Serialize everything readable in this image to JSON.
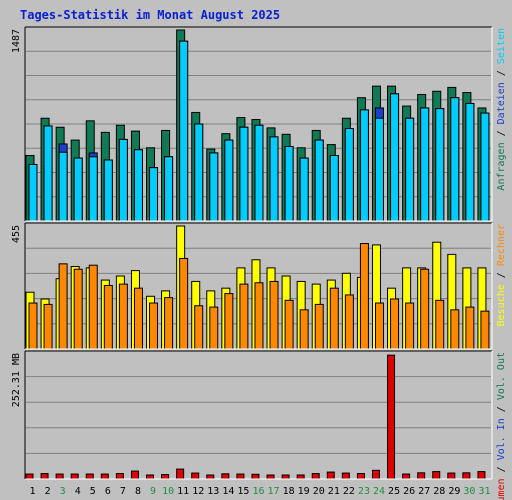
{
  "title": "Tages-Statistik im Monat August 2025",
  "colors": {
    "title": "#0b20d0",
    "background": "#c0c0c0",
    "plot_bg": "#c0c0c0",
    "border_dark": "#000000",
    "grid": "#808080",
    "requests": "#117a55",
    "pages": "#00ccff",
    "files": "#1a3fcc",
    "visits": "#ffff00",
    "visitors": "#ff8800",
    "kbytes": "#dd0000",
    "weekend": "#1f8f3f",
    "weekday": "#000000"
  },
  "chart_data": [
    {
      "type": "bar",
      "ylabel": "1487",
      "ylim": [
        0,
        1487
      ],
      "legend": [
        "Anfragen",
        "/",
        "Dateien",
        "/",
        "Seiten"
      ],
      "x": [
        1,
        2,
        3,
        4,
        5,
        6,
        7,
        8,
        9,
        10,
        11,
        12,
        13,
        14,
        15,
        16,
        17,
        18,
        19,
        20,
        21,
        22,
        23,
        24,
        25,
        26,
        27,
        28,
        29,
        30,
        31
      ],
      "series": [
        {
          "name": "Anfragen",
          "color_key": "requests",
          "values": [
            510,
            800,
            730,
            630,
            780,
            690,
            745,
            700,
            570,
            705,
            1487,
            845,
            560,
            680,
            805,
            790,
            725,
            675,
            570,
            705,
            595,
            800,
            960,
            1050,
            1050,
            895,
            985,
            1010,
            1040,
            1000,
            880
          ]
        },
        {
          "name": "Dateien",
          "color_key": "files",
          "values": [
            440,
            740,
            600,
            490,
            530,
            475,
            635,
            555,
            415,
            500,
            1400,
            755,
            530,
            630,
            730,
            745,
            655,
            580,
            490,
            630,
            510,
            720,
            865,
            880,
            990,
            800,
            880,
            875,
            960,
            915,
            840
          ]
        },
        {
          "name": "Seiten",
          "color_key": "pages",
          "values": [
            440,
            740,
            535,
            490,
            500,
            475,
            635,
            555,
            415,
            500,
            1400,
            755,
            530,
            630,
            730,
            745,
            655,
            580,
            490,
            630,
            510,
            720,
            865,
            800,
            990,
            800,
            880,
            875,
            960,
            915,
            840
          ]
        }
      ]
    },
    {
      "type": "bar",
      "ylabel": "455",
      "ylim": [
        0,
        455
      ],
      "legend": [
        "Besuche",
        "/",
        "Rechner"
      ],
      "x": [
        1,
        2,
        3,
        4,
        5,
        6,
        7,
        8,
        9,
        10,
        11,
        12,
        13,
        14,
        15,
        16,
        17,
        18,
        19,
        20,
        21,
        22,
        23,
        24,
        25,
        26,
        27,
        28,
        29,
        30,
        31
      ],
      "series": [
        {
          "name": "Besuche",
          "color_key": "visits",
          "values": [
            210,
            185,
            260,
            305,
            300,
            255,
            270,
            290,
            195,
            215,
            455,
            250,
            215,
            225,
            300,
            330,
            300,
            270,
            250,
            240,
            255,
            280,
            265,
            385,
            225,
            300,
            300,
            395,
            350,
            300,
            300
          ]
        },
        {
          "name": "Rechner",
          "color_key": "visitors",
          "values": [
            170,
            165,
            315,
            295,
            310,
            235,
            240,
            225,
            170,
            190,
            335,
            160,
            155,
            205,
            240,
            245,
            250,
            180,
            145,
            165,
            225,
            200,
            390,
            170,
            185,
            170,
            295,
            180,
            145,
            155,
            140
          ]
        }
      ]
    },
    {
      "type": "bar",
      "ylabel": "252.31 MB",
      "ylim": [
        0,
        504.62
      ],
      "legend": [
        "Volumen",
        "/",
        "Vol. In",
        "/",
        "Vol. Out"
      ],
      "x": [
        1,
        2,
        3,
        4,
        5,
        6,
        7,
        8,
        9,
        10,
        11,
        12,
        13,
        14,
        15,
        16,
        17,
        18,
        19,
        20,
        21,
        22,
        23,
        24,
        25,
        26,
        27,
        28,
        29,
        30,
        31
      ],
      "series": [
        {
          "name": "Volumen",
          "color_key": "kbytes",
          "values": [
            20,
            22,
            20,
            20,
            20,
            20,
            22,
            32,
            14,
            18,
            40,
            24,
            16,
            21,
            20,
            19,
            12,
            14,
            12,
            22,
            28,
            24,
            22,
            35,
            500,
            20,
            25,
            30,
            24,
            25,
            30
          ]
        }
      ]
    }
  ],
  "x_labels": [
    {
      "t": "1",
      "weekend": false
    },
    {
      "t": "2",
      "weekend": false
    },
    {
      "t": "3",
      "weekend": true
    },
    {
      "t": "4",
      "weekend": false
    },
    {
      "t": "5",
      "weekend": false
    },
    {
      "t": "6",
      "weekend": false
    },
    {
      "t": "7",
      "weekend": false
    },
    {
      "t": "8",
      "weekend": false
    },
    {
      "t": "9",
      "weekend": true
    },
    {
      "t": "10",
      "weekend": true
    },
    {
      "t": "11",
      "weekend": false
    },
    {
      "t": "12",
      "weekend": false
    },
    {
      "t": "13",
      "weekend": false
    },
    {
      "t": "14",
      "weekend": false
    },
    {
      "t": "15",
      "weekend": false
    },
    {
      "t": "16",
      "weekend": true
    },
    {
      "t": "17",
      "weekend": true
    },
    {
      "t": "18",
      "weekend": false
    },
    {
      "t": "19",
      "weekend": false
    },
    {
      "t": "20",
      "weekend": false
    },
    {
      "t": "21",
      "weekend": false
    },
    {
      "t": "22",
      "weekend": false
    },
    {
      "t": "23",
      "weekend": true
    },
    {
      "t": "24",
      "weekend": true
    },
    {
      "t": "25",
      "weekend": false
    },
    {
      "t": "26",
      "weekend": false
    },
    {
      "t": "27",
      "weekend": false
    },
    {
      "t": "28",
      "weekend": false
    },
    {
      "t": "29",
      "weekend": false
    },
    {
      "t": "30",
      "weekend": true
    },
    {
      "t": "31",
      "weekend": true
    }
  ]
}
